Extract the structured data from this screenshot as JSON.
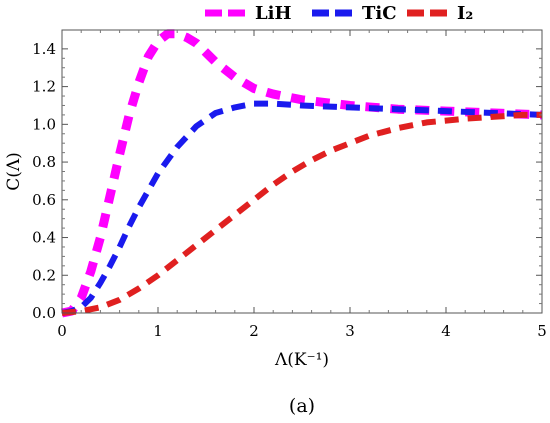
{
  "chart_data": {
    "type": "line",
    "xlabel": "Λ(K⁻¹)",
    "ylabel": "C(Λ)",
    "xlim": [
      0,
      5
    ],
    "ylim": [
      0,
      1.5
    ],
    "x_ticks": [
      "0",
      "1",
      "2",
      "3",
      "4",
      "5"
    ],
    "y_ticks": [
      "0.0",
      "0.2",
      "0.4",
      "0.6",
      "0.8",
      "1.0",
      "1.2",
      "1.4"
    ],
    "grid": false,
    "legend_position": "top",
    "caption": "(a)",
    "series": [
      {
        "name": "LiH",
        "color": "#ff00ff",
        "points": [
          [
            0,
            0.0
          ],
          [
            0.1,
            0.01
          ],
          [
            0.2,
            0.08
          ],
          [
            0.3,
            0.22
          ],
          [
            0.4,
            0.4
          ],
          [
            0.5,
            0.62
          ],
          [
            0.6,
            0.84
          ],
          [
            0.7,
            1.05
          ],
          [
            0.8,
            1.22
          ],
          [
            0.9,
            1.36
          ],
          [
            1.0,
            1.44
          ],
          [
            1.1,
            1.48
          ],
          [
            1.2,
            1.48
          ],
          [
            1.3,
            1.46
          ],
          [
            1.4,
            1.43
          ],
          [
            1.5,
            1.38
          ],
          [
            1.6,
            1.33
          ],
          [
            1.8,
            1.25
          ],
          [
            2.0,
            1.19
          ],
          [
            2.2,
            1.16
          ],
          [
            2.5,
            1.13
          ],
          [
            3.0,
            1.1
          ],
          [
            3.5,
            1.08
          ],
          [
            4.0,
            1.07
          ],
          [
            4.5,
            1.06
          ],
          [
            5.0,
            1.05
          ]
        ]
      },
      {
        "name": "TiC",
        "color": "#1a1aee",
        "points": [
          [
            0,
            0.0
          ],
          [
            0.1,
            0.01
          ],
          [
            0.2,
            0.03
          ],
          [
            0.3,
            0.08
          ],
          [
            0.4,
            0.16
          ],
          [
            0.5,
            0.25
          ],
          [
            0.6,
            0.35
          ],
          [
            0.7,
            0.46
          ],
          [
            0.8,
            0.56
          ],
          [
            0.9,
            0.65
          ],
          [
            1.0,
            0.74
          ],
          [
            1.2,
            0.88
          ],
          [
            1.4,
            0.99
          ],
          [
            1.6,
            1.06
          ],
          [
            1.8,
            1.09
          ],
          [
            2.0,
            1.11
          ],
          [
            2.2,
            1.11
          ],
          [
            2.5,
            1.1
          ],
          [
            3.0,
            1.09
          ],
          [
            3.5,
            1.08
          ],
          [
            4.0,
            1.07
          ],
          [
            4.5,
            1.06
          ],
          [
            5.0,
            1.05
          ]
        ]
      },
      {
        "name": "I₂",
        "color": "#e02020",
        "points": [
          [
            0,
            0.0
          ],
          [
            0.2,
            0.01
          ],
          [
            0.4,
            0.03
          ],
          [
            0.6,
            0.07
          ],
          [
            0.8,
            0.13
          ],
          [
            1.0,
            0.2
          ],
          [
            1.2,
            0.28
          ],
          [
            1.4,
            0.36
          ],
          [
            1.6,
            0.44
          ],
          [
            1.8,
            0.52
          ],
          [
            2.0,
            0.6
          ],
          [
            2.2,
            0.68
          ],
          [
            2.4,
            0.75
          ],
          [
            2.6,
            0.81
          ],
          [
            2.8,
            0.86
          ],
          [
            3.0,
            0.9
          ],
          [
            3.2,
            0.94
          ],
          [
            3.5,
            0.98
          ],
          [
            3.8,
            1.01
          ],
          [
            4.0,
            1.02
          ],
          [
            4.2,
            1.03
          ],
          [
            4.5,
            1.04
          ],
          [
            4.8,
            1.05
          ],
          [
            5.0,
            1.05
          ]
        ]
      }
    ]
  }
}
